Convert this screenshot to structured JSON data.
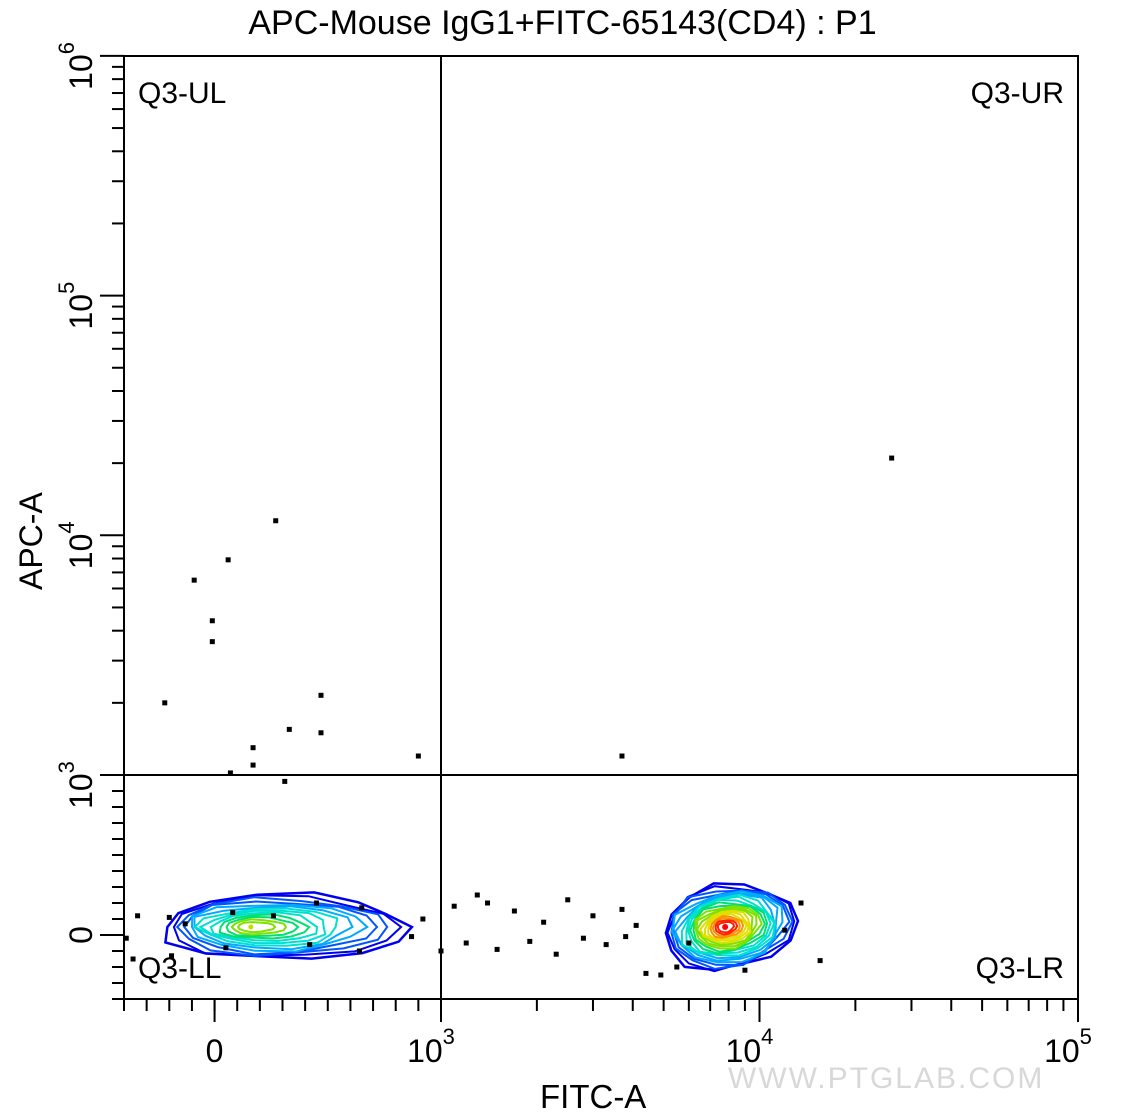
{
  "title": "APC-Mouse IgG1+FITC-65143(CD4) : P1",
  "watermark": "WWW.PTGLAB.COM",
  "chart_data": {
    "type": "scatter",
    "subtype": "flow-cytometry-contour-with-outliers",
    "title": "APC-Mouse IgG1+FITC-65143(CD4) : P1",
    "xlabel": "FITC-A",
    "ylabel": "APC-A",
    "x_scale": "biexponential",
    "y_scale": "biexponential",
    "xlim": [
      -400,
      100000
    ],
    "ylim": [
      -400,
      1000000
    ],
    "x_ticks": [
      {
        "value": 0,
        "label": "0",
        "sup": ""
      },
      {
        "value": 1000,
        "label": "10",
        "sup": "3"
      },
      {
        "value": 10000,
        "label": "10",
        "sup": "4"
      },
      {
        "value": 100000,
        "label": "10",
        "sup": "5"
      }
    ],
    "y_ticks": [
      {
        "value": 0,
        "label": "0",
        "sup": ""
      },
      {
        "value": 1000,
        "label": "10",
        "sup": "3"
      },
      {
        "value": 10000,
        "label": "10",
        "sup": "4"
      },
      {
        "value": 100000,
        "label": "10",
        "sup": "5"
      },
      {
        "value": 1000000,
        "label": "10",
        "sup": "6"
      }
    ],
    "gate": {
      "x": 1000,
      "y": 1000
    },
    "quadrants": [
      {
        "name": "Q3-UL",
        "position": "top-left"
      },
      {
        "name": "Q3-UR",
        "position": "top-right"
      },
      {
        "name": "Q3-LL",
        "position": "bottom-left"
      },
      {
        "name": "Q3-LR",
        "position": "bottom-right"
      }
    ],
    "populations": [
      {
        "name": "",
        "center": [
          160,
          50
        ],
        "x_spread": [
          -230,
          850
        ],
        "y_spread": [
          -110,
          300
        ],
        "density": "low"
      },
      {
        "name": "",
        "center": [
          7800,
          50
        ],
        "x_spread": [
          5000,
          13000
        ],
        "y_spread": [
          -170,
          360
        ],
        "density": "high"
      }
    ],
    "outliers": [
      [
        -90,
        6500
      ],
      [
        -10,
        4400
      ],
      [
        -10,
        3600
      ],
      [
        60,
        7900
      ],
      [
        -220,
        2000
      ],
      [
        170,
        1100
      ],
      [
        170,
        1300
      ],
      [
        270,
        11500
      ],
      [
        330,
        1550
      ],
      [
        470,
        2150
      ],
      [
        470,
        1500
      ],
      [
        70,
        1020
      ],
      [
        900,
        1200
      ],
      [
        3700,
        1200
      ],
      [
        26000,
        21000
      ],
      [
        310,
        960
      ],
      [
        -340,
        120
      ],
      [
        -200,
        110
      ],
      [
        -130,
        70
      ],
      [
        80,
        140
      ],
      [
        260,
        120
      ],
      [
        450,
        200
      ],
      [
        650,
        170
      ],
      [
        920,
        100
      ],
      [
        -390,
        -20
      ],
      [
        -360,
        -150
      ],
      [
        -190,
        -130
      ],
      [
        50,
        -80
      ],
      [
        420,
        -60
      ],
      [
        640,
        -100
      ],
      [
        870,
        -10
      ],
      [
        1100,
        180
      ],
      [
        1400,
        200
      ],
      [
        1700,
        150
      ],
      [
        2100,
        80
      ],
      [
        2500,
        220
      ],
      [
        3000,
        120
      ],
      [
        3700,
        160
      ],
      [
        4100,
        60
      ],
      [
        1200,
        -50
      ],
      [
        1500,
        -90
      ],
      [
        1900,
        -40
      ],
      [
        2300,
        -120
      ],
      [
        2800,
        -20
      ],
      [
        3300,
        -60
      ],
      [
        4400,
        -240
      ],
      [
        4900,
        -250
      ],
      [
        5500,
        -200
      ],
      [
        9000,
        -220
      ],
      [
        12000,
        30
      ],
      [
        13500,
        200
      ],
      [
        15500,
        -160
      ],
      [
        1300,
        250
      ],
      [
        1000,
        -100
      ],
      [
        3800,
        -10
      ],
      [
        6000,
        -50
      ]
    ]
  },
  "colors": {
    "axis": "#000000",
    "contour_scale": [
      "#0000ee",
      "#0055ff",
      "#00aaff",
      "#00e0d0",
      "#00e070",
      "#80e000",
      "#e0e000",
      "#ff9000",
      "#ff2000"
    ]
  }
}
